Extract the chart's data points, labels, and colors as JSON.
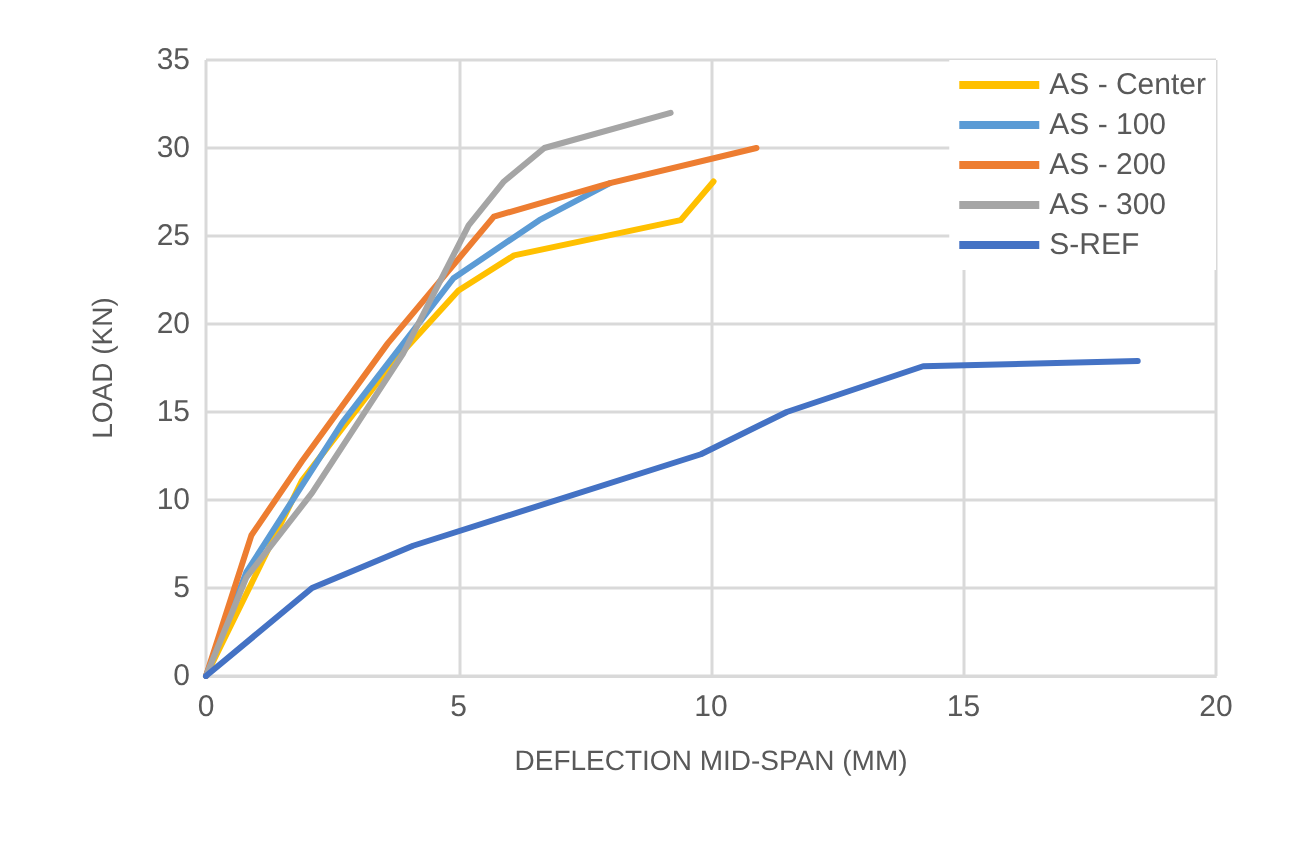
{
  "chart_data": {
    "type": "line",
    "xlabel": "DEFLECTION MID-SPAN (MM)",
    "ylabel": "LOAD (KN)",
    "xlim": [
      0,
      20
    ],
    "xticks": [
      0,
      5,
      10,
      15,
      20
    ],
    "ylim": [
      0,
      35
    ],
    "yticks": [
      0,
      5,
      10,
      15,
      20,
      25,
      30,
      35
    ],
    "grid": true,
    "legend": "top right",
    "marker": "none",
    "line_style": "solid",
    "series": [
      {
        "name": "AS - Center",
        "color": "#ffc000",
        "x": [
          0,
          1.9,
          3.7,
          5.0,
          6.1,
          9.4,
          10.05
        ],
        "values": [
          0,
          11.1,
          17.8,
          21.9,
          23.9,
          25.9,
          28.1
        ]
      },
      {
        "name": "AS - 100",
        "color": "#5b9bd5",
        "x": [
          0,
          0.8,
          2.7,
          4.9,
          6.6,
          8.0
        ],
        "values": [
          0,
          5.9,
          14.4,
          22.6,
          25.9,
          28.0
        ]
      },
      {
        "name": "AS - 200",
        "color": "#ed7d31",
        "x": [
          0,
          0.9,
          1.9,
          3.6,
          5.7,
          8.0,
          10.9
        ],
        "values": [
          0,
          8.0,
          12.2,
          18.9,
          26.1,
          28.0,
          30.0
        ]
      },
      {
        "name": "AS - 300",
        "color": "#a5a5a5",
        "x": [
          0,
          0.8,
          2.1,
          3.9,
          5.2,
          5.9,
          6.7,
          9.2
        ],
        "values": [
          0,
          5.6,
          10.4,
          18.3,
          25.6,
          28.1,
          30.0,
          32.0
        ]
      },
      {
        "name": "S-REF",
        "color": "#4472c4",
        "x": [
          0,
          2.1,
          4.1,
          9.8,
          11.5,
          14.2,
          18.45
        ],
        "values": [
          0,
          5.0,
          7.4,
          12.6,
          15.0,
          17.6,
          17.9
        ]
      }
    ]
  }
}
